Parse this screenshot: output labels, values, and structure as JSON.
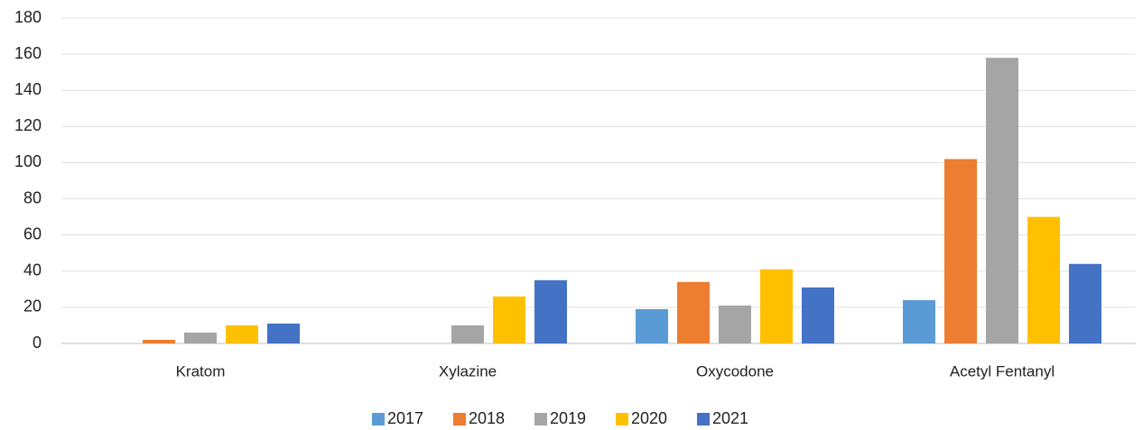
{
  "chart_data": {
    "type": "bar",
    "categories": [
      "Kratom",
      "Xylazine",
      "Oxycodone",
      "Acetyl Fentanyl"
    ],
    "series": [
      {
        "name": "2017",
        "color": "#5b9bd5",
        "values": [
          0,
          0,
          19,
          24
        ]
      },
      {
        "name": "2018",
        "color": "#ed7d31",
        "values": [
          2,
          0,
          34,
          102
        ]
      },
      {
        "name": "2019",
        "color": "#a5a5a5",
        "values": [
          6,
          10,
          21,
          158
        ]
      },
      {
        "name": "2020",
        "color": "#ffc000",
        "values": [
          10,
          26,
          41,
          70
        ]
      },
      {
        "name": "2021",
        "color": "#4472c4",
        "values": [
          11,
          35,
          31,
          44
        ]
      }
    ],
    "ylim": [
      0,
      180
    ],
    "yticks": [
      0,
      20,
      40,
      60,
      80,
      100,
      120,
      140,
      160,
      180
    ],
    "grid": true,
    "legend": "bottom"
  }
}
